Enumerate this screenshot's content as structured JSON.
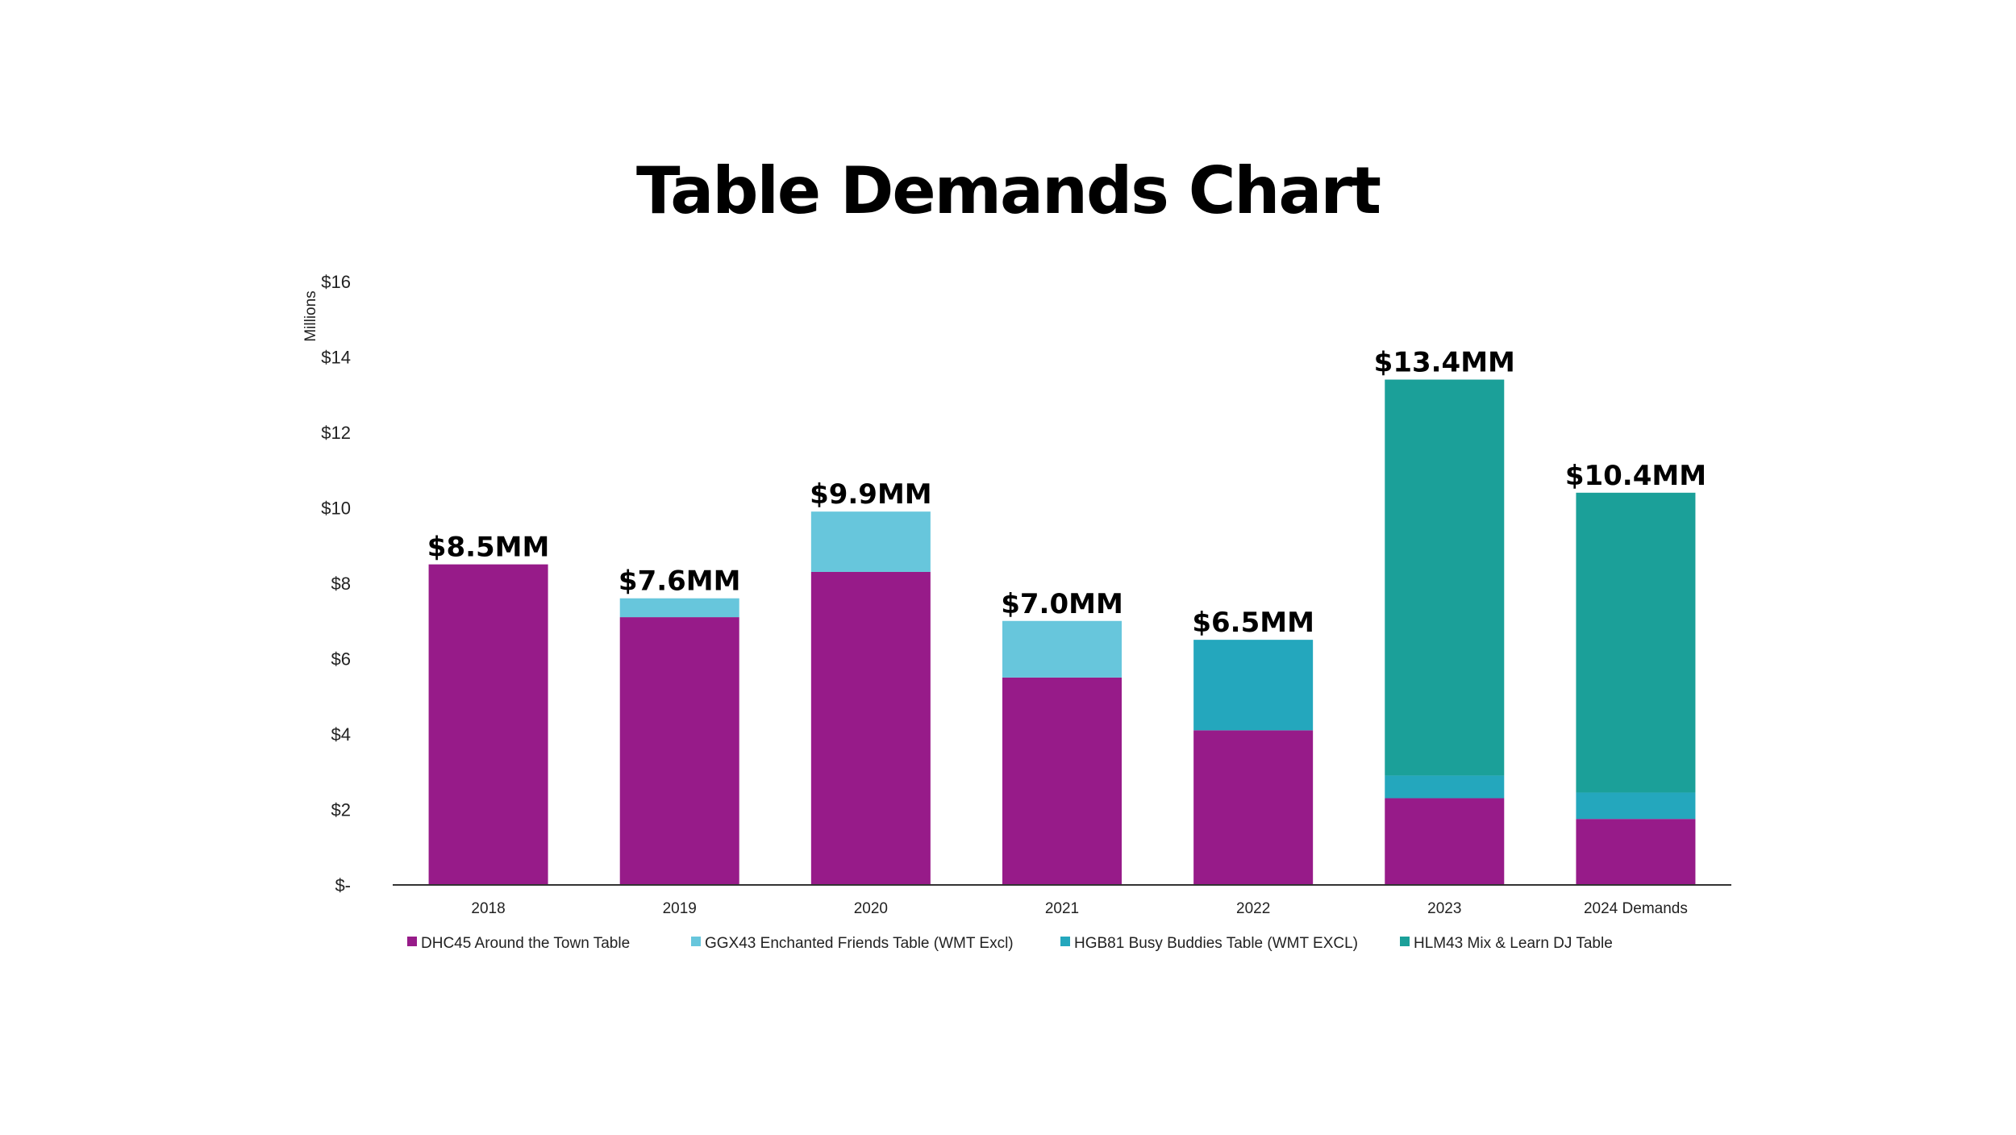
{
  "colors": {
    "DHC45": "#971b89",
    "GGX43": "#67c6dc",
    "HGB81": "#24a7bd",
    "HLM43": "#1ba099"
  },
  "chart_data": {
    "type": "bar",
    "stacked": true,
    "title": "Table Demands Chart",
    "xlabel": "",
    "ylabel": "Millions",
    "ylim": [
      0,
      16
    ],
    "yticks": [
      {
        "value": 0,
        "label": "$-"
      },
      {
        "value": 2,
        "label": "$2"
      },
      {
        "value": 4,
        "label": "$4"
      },
      {
        "value": 6,
        "label": "$6"
      },
      {
        "value": 8,
        "label": "$8"
      },
      {
        "value": 10,
        "label": "$10"
      },
      {
        "value": 12,
        "label": "$12"
      },
      {
        "value": 14,
        "label": "$14"
      },
      {
        "value": 16,
        "label": "$16"
      }
    ],
    "categories": [
      "2018",
      "2019",
      "2020",
      "2021",
      "2022",
      "2023",
      "2024 Demands"
    ],
    "series": [
      {
        "key": "DHC45",
        "name": "DHC45 Around the Town Table",
        "values": [
          8.5,
          7.1,
          8.3,
          5.5,
          4.1,
          2.3,
          1.75
        ]
      },
      {
        "key": "GGX43",
        "name": "GGX43 Enchanted Friends Table (WMT Excl)",
        "values": [
          0,
          0.5,
          1.6,
          1.5,
          0,
          0,
          0
        ]
      },
      {
        "key": "HGB81",
        "name": "HGB81 Busy Buddies Table (WMT EXCL)",
        "values": [
          0,
          0,
          0,
          0,
          2.4,
          0.6,
          0.7
        ]
      },
      {
        "key": "HLM43",
        "name": "HLM43 Mix & Learn DJ Table",
        "values": [
          0,
          0,
          0,
          0,
          0,
          10.5,
          7.95
        ]
      }
    ],
    "totals": [
      "$8.5MM",
      "$7.6MM",
      "$9.9MM",
      "$7.0MM",
      "$6.5MM",
      "$13.4MM",
      "$10.4MM"
    ],
    "legend_position": "bottom",
    "grid": false
  }
}
